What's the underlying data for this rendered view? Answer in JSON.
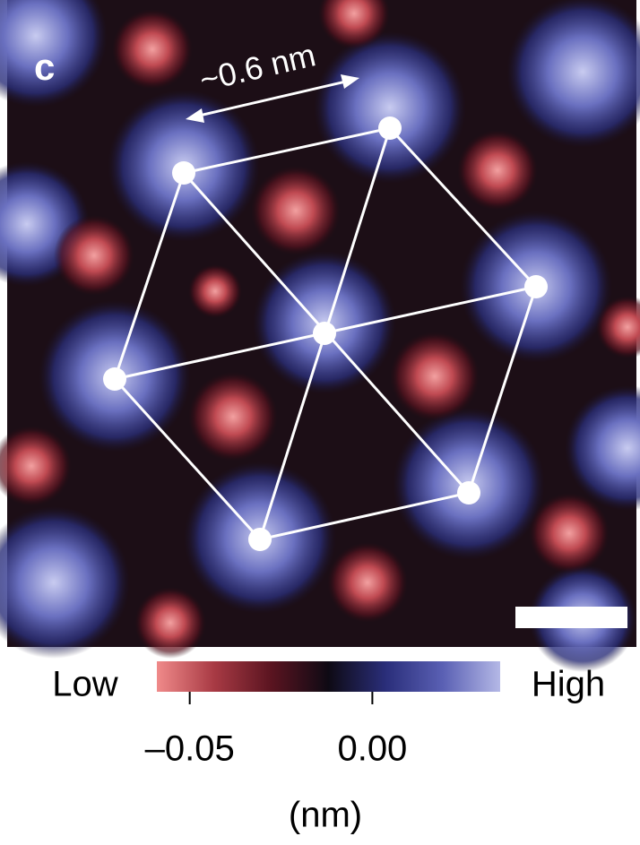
{
  "panel_label": "c",
  "annotation": "~0.6 nm",
  "colorbar": {
    "low_label": "Low",
    "high_label": "High",
    "range": [
      -0.059,
      0.035
    ],
    "ticks": [
      {
        "value": -0.05,
        "label": "–0.05"
      },
      {
        "value": 0,
        "label": "0.00"
      }
    ],
    "unit_label": "(nm)",
    "colors": [
      "#f08a8a",
      "#a83a44",
      "#5a1420",
      "#0e0a14",
      "#2a2e7a",
      "#5a60b4",
      "#b4b8e6"
    ]
  }
}
